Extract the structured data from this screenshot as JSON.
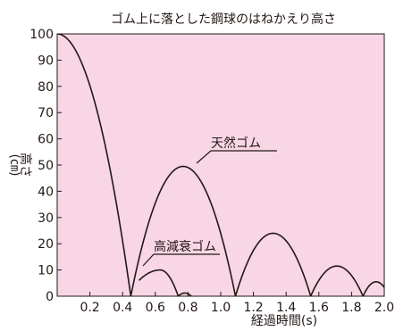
{
  "chart_data": {
    "type": "line",
    "title": "ゴム上に落とした鋼球のはねかえり高さ",
    "xlabel": "経過時間(s)",
    "ylabel_main": "高さ",
    "ylabel_unit": "(㎝)",
    "xlim": [
      0,
      2.0
    ],
    "ylim": [
      0,
      100
    ],
    "x_ticks": [
      "0.2",
      "0.4",
      "0.6",
      "0.8",
      "1.0",
      "1.2",
      "1.4",
      "1.6",
      "1.8",
      "2.0"
    ],
    "y_ticks": [
      "0",
      "10",
      "20",
      "30",
      "40",
      "50",
      "60",
      "70",
      "80",
      "90",
      "100"
    ],
    "grid": false,
    "background": "#f8d6e5",
    "line_color": "#231815",
    "series": [
      {
        "name": "天然ゴム",
        "segments": [
          {
            "start": 0.0,
            "end": 0.45,
            "peak_x": 0.0,
            "peak": 100
          },
          {
            "start": 0.45,
            "end": 1.09,
            "peak_x": 0.77,
            "peak": 49.5
          },
          {
            "start": 1.09,
            "end": 1.55,
            "peak_x": 1.32,
            "peak": 24
          },
          {
            "start": 1.55,
            "end": 1.87,
            "peak_x": 1.71,
            "peak": 11.5
          },
          {
            "start": 1.87,
            "end": 2.03,
            "peak_x": 1.95,
            "peak": 5.5
          }
        ]
      },
      {
        "name": "高減衰ゴム",
        "segments": [
          {
            "start": 0.5,
            "end": 0.74,
            "peak_x": 0.63,
            "peak": 10,
            "start_y": 6
          },
          {
            "start": 0.74,
            "end": 0.82,
            "peak_x": 0.78,
            "peak": 1.2
          }
        ]
      }
    ]
  }
}
